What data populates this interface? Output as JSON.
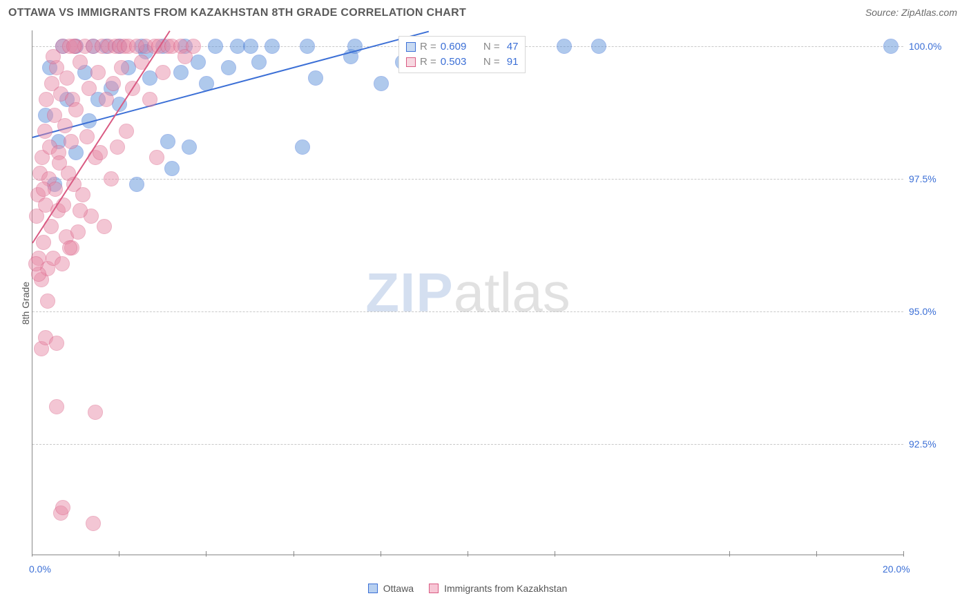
{
  "header": {
    "title": "OTTAWA VS IMMIGRANTS FROM KAZAKHSTAN 8TH GRADE CORRELATION CHART",
    "source_prefix": "Source: ",
    "source_name": "ZipAtlas.com"
  },
  "chart": {
    "type": "scatter",
    "background_color": "#ffffff",
    "grid_color": "#c8c8c8",
    "axis_color": "#888888",
    "tick_label_color": "#3b6fd6",
    "ylabel": "8th Grade",
    "xlim": [
      0,
      20
    ],
    "ylim": [
      90.4,
      100.3
    ],
    "ytick_values": [
      92.5,
      95.0,
      97.5,
      100.0
    ],
    "ytick_labels": [
      "92.5%",
      "95.0%",
      "97.5%",
      "100.0%"
    ],
    "xtick_values": [
      0,
      2,
      4,
      6,
      8,
      10,
      12,
      16,
      18,
      20
    ],
    "xtick_label_map": {
      "0": "0.0%",
      "20": "20.0%"
    },
    "marker_radius": 11,
    "marker_stroke_width": 1,
    "marker_fill_opacity": 0.28,
    "watermark": {
      "zip": "ZIP",
      "atlas": "atlas"
    },
    "series": [
      {
        "name": "Ottawa",
        "color_fill": "#5a8fd8",
        "color_stroke": "#3b6fd6",
        "R": "0.609",
        "N": "47",
        "trend": {
          "x1": 0,
          "y1": 98.3,
          "x2": 9.1,
          "y2": 100.3
        },
        "points": [
          [
            0.3,
            98.7
          ],
          [
            0.4,
            99.6
          ],
          [
            0.5,
            97.4
          ],
          [
            0.6,
            98.2
          ],
          [
            0.7,
            100.0
          ],
          [
            0.8,
            99.0
          ],
          [
            1.0,
            98.0
          ],
          [
            1.0,
            100.0
          ],
          [
            1.2,
            99.5
          ],
          [
            1.3,
            98.6
          ],
          [
            1.4,
            100.0
          ],
          [
            1.5,
            99.0
          ],
          [
            1.7,
            100.0
          ],
          [
            1.8,
            99.2
          ],
          [
            2.0,
            98.9
          ],
          [
            2.0,
            100.0
          ],
          [
            2.2,
            99.6
          ],
          [
            2.4,
            97.4
          ],
          [
            2.5,
            100.0
          ],
          [
            2.6,
            99.9
          ],
          [
            2.7,
            99.4
          ],
          [
            3.0,
            100.0
          ],
          [
            3.1,
            98.2
          ],
          [
            3.2,
            97.7
          ],
          [
            3.4,
            99.5
          ],
          [
            3.5,
            100.0
          ],
          [
            3.6,
            98.1
          ],
          [
            3.8,
            99.7
          ],
          [
            4.0,
            99.3
          ],
          [
            4.2,
            100.0
          ],
          [
            4.5,
            99.6
          ],
          [
            4.7,
            100.0
          ],
          [
            5.0,
            100.0
          ],
          [
            5.2,
            99.7
          ],
          [
            5.5,
            100.0
          ],
          [
            6.2,
            98.1
          ],
          [
            6.3,
            100.0
          ],
          [
            6.5,
            99.4
          ],
          [
            7.3,
            99.8
          ],
          [
            7.4,
            100.0
          ],
          [
            8.0,
            99.3
          ],
          [
            8.5,
            99.7
          ],
          [
            8.6,
            100.0
          ],
          [
            9.3,
            100.0
          ],
          [
            12.2,
            100.0
          ],
          [
            13.0,
            100.0
          ],
          [
            19.7,
            100.0
          ]
        ]
      },
      {
        "name": "Immigrants from Kazakhstan",
        "color_fill": "#e88aa6",
        "color_stroke": "#d95a82",
        "R": "0.503",
        "N": "91",
        "trend": {
          "x1": 0,
          "y1": 96.3,
          "x2": 3.15,
          "y2": 100.3
        },
        "points": [
          [
            0.1,
            96.8
          ],
          [
            0.12,
            97.2
          ],
          [
            0.15,
            96.0
          ],
          [
            0.18,
            97.6
          ],
          [
            0.2,
            95.6
          ],
          [
            0.22,
            97.9
          ],
          [
            0.25,
            96.3
          ],
          [
            0.28,
            98.4
          ],
          [
            0.3,
            97.0
          ],
          [
            0.32,
            99.0
          ],
          [
            0.35,
            95.8
          ],
          [
            0.38,
            97.5
          ],
          [
            0.4,
            98.1
          ],
          [
            0.42,
            96.6
          ],
          [
            0.45,
            99.3
          ],
          [
            0.48,
            96.0
          ],
          [
            0.5,
            98.7
          ],
          [
            0.52,
            97.3
          ],
          [
            0.55,
            99.6
          ],
          [
            0.58,
            96.9
          ],
          [
            0.6,
            98.0
          ],
          [
            0.62,
            97.8
          ],
          [
            0.65,
            99.1
          ],
          [
            0.68,
            95.9
          ],
          [
            0.7,
            100.0
          ],
          [
            0.72,
            97.0
          ],
          [
            0.75,
            98.5
          ],
          [
            0.78,
            96.4
          ],
          [
            0.8,
            99.4
          ],
          [
            0.82,
            97.6
          ],
          [
            0.85,
            100.0
          ],
          [
            0.88,
            98.2
          ],
          [
            0.9,
            96.2
          ],
          [
            0.92,
            99.0
          ],
          [
            0.95,
            97.4
          ],
          [
            0.98,
            100.0
          ],
          [
            1.0,
            98.8
          ],
          [
            1.05,
            96.5
          ],
          [
            1.1,
            99.7
          ],
          [
            1.15,
            97.2
          ],
          [
            1.2,
            100.0
          ],
          [
            1.25,
            98.3
          ],
          [
            1.3,
            99.2
          ],
          [
            1.35,
            96.8
          ],
          [
            1.4,
            100.0
          ],
          [
            1.45,
            97.9
          ],
          [
            1.5,
            99.5
          ],
          [
            1.55,
            98.0
          ],
          [
            1.6,
            100.0
          ],
          [
            1.65,
            96.6
          ],
          [
            1.7,
            99.0
          ],
          [
            1.75,
            100.0
          ],
          [
            1.8,
            97.5
          ],
          [
            1.85,
            99.3
          ],
          [
            1.9,
            100.0
          ],
          [
            1.95,
            98.1
          ],
          [
            2.0,
            100.0
          ],
          [
            2.05,
            99.6
          ],
          [
            2.1,
            100.0
          ],
          [
            2.15,
            98.4
          ],
          [
            2.2,
            100.0
          ],
          [
            2.3,
            99.2
          ],
          [
            2.4,
            100.0
          ],
          [
            2.5,
            99.7
          ],
          [
            2.6,
            100.0
          ],
          [
            2.7,
            99.0
          ],
          [
            2.8,
            100.0
          ],
          [
            2.85,
            97.9
          ],
          [
            2.9,
            100.0
          ],
          [
            3.0,
            99.5
          ],
          [
            3.1,
            100.0
          ],
          [
            3.2,
            100.0
          ],
          [
            3.4,
            100.0
          ],
          [
            3.5,
            99.8
          ],
          [
            3.7,
            100.0
          ],
          [
            0.2,
            94.3
          ],
          [
            0.3,
            94.5
          ],
          [
            0.55,
            94.4
          ],
          [
            0.55,
            93.2
          ],
          [
            0.35,
            95.2
          ],
          [
            0.15,
            95.7
          ],
          [
            0.08,
            95.9
          ],
          [
            0.65,
            91.2
          ],
          [
            0.7,
            91.3
          ],
          [
            1.4,
            91.0
          ],
          [
            1.45,
            93.1
          ],
          [
            0.25,
            97.3
          ],
          [
            0.95,
            100.0
          ],
          [
            1.1,
            96.9
          ],
          [
            0.48,
            99.8
          ],
          [
            0.85,
            96.2
          ]
        ]
      }
    ],
    "legend_bottom": [
      {
        "label": "Ottawa",
        "fill": "#b8d0f0",
        "stroke": "#3b6fd6"
      },
      {
        "label": "Immigrants from Kazakhstan",
        "fill": "#f7c6d5",
        "stroke": "#d95a82"
      }
    ],
    "legend_stats": {
      "R_label": "R =",
      "N_label": "N ="
    }
  }
}
